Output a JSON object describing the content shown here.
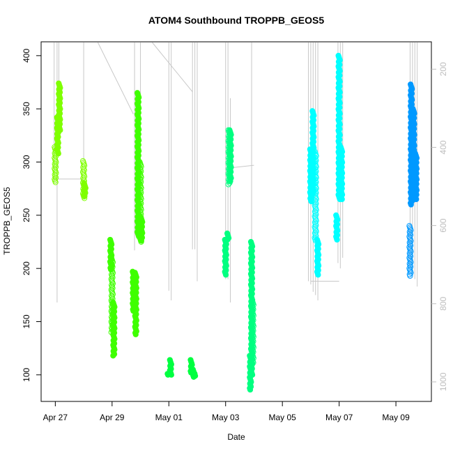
{
  "chart_data": {
    "type": "scatter",
    "title": "ATOM4 Southbound TROPPB_GEOS5",
    "xlabel": "Date",
    "ylabel": "TROPPB_GEOS5",
    "xlim": [
      "2018-04-26T12:00",
      "2018-05-10T06:00"
    ],
    "ylim": [
      75,
      413
    ],
    "x_ticks": [
      {
        "label": "Apr 27",
        "date": "2018-04-27"
      },
      {
        "label": "Apr 29",
        "date": "2018-04-29"
      },
      {
        "label": "May 01",
        "date": "2018-05-01"
      },
      {
        "label": "May 03",
        "date": "2018-05-03"
      },
      {
        "label": "May 05",
        "date": "2018-05-05"
      },
      {
        "label": "May 07",
        "date": "2018-05-07"
      },
      {
        "label": "May 09",
        "date": "2018-05-09"
      }
    ],
    "y_ticks": [
      100,
      150,
      200,
      250,
      300,
      350,
      400
    ],
    "right_axis": {
      "color": "#bdbdbd",
      "lim": [
        1050,
        130
      ],
      "ticks": [
        200,
        400,
        600,
        800,
        1000
      ]
    },
    "grid": false,
    "legend": "none",
    "series": [
      {
        "color": "#7fff00",
        "segments": [
          {
            "x": "2018-04-27T00:00",
            "y0": 281,
            "y1": 314,
            "hollow": true
          },
          {
            "x": "2018-04-27T02:00",
            "y0": 308,
            "y1": 342
          },
          {
            "x": "2018-04-27T03:30",
            "y0": 330,
            "y1": 374
          },
          {
            "x": "2018-04-28T00:00",
            "y0": 266,
            "y1": 301,
            "hollow": true
          },
          {
            "x": "2018-04-28T01:00",
            "y0": 268,
            "y1": 280
          }
        ]
      },
      {
        "color": "#3fff00",
        "segments": [
          {
            "x": "2018-04-28T23:00",
            "y0": 199,
            "y1": 227
          },
          {
            "x": "2018-04-29T00:00",
            "y0": 140,
            "y1": 210,
            "hollow": true
          },
          {
            "x": "2018-04-29T01:30",
            "y0": 118,
            "y1": 168
          },
          {
            "x": "2018-04-29T18:00",
            "y0": 160,
            "y1": 197
          },
          {
            "x": "2018-04-29T20:00",
            "y0": 138,
            "y1": 196
          },
          {
            "x": "2018-04-29T22:00",
            "y0": 230,
            "y1": 365
          },
          {
            "x": "2018-04-30T00:00",
            "y0": 225,
            "y1": 300,
            "hollow": true
          },
          {
            "x": "2018-04-30T01:00",
            "y0": 226,
            "y1": 248
          }
        ]
      },
      {
        "color": "#00ff40",
        "segments": [
          {
            "x": "2018-04-30T23:30",
            "y0": 100,
            "y1": 101
          },
          {
            "x": "2018-05-01T01:30",
            "y0": 100,
            "y1": 114
          },
          {
            "x": "2018-05-01T19:00",
            "y0": 102,
            "y1": 114
          },
          {
            "x": "2018-05-01T21:00",
            "y0": 98,
            "y1": 105
          },
          {
            "x": "2018-05-01T22:30",
            "y0": 99,
            "y1": 101
          }
        ]
      },
      {
        "color": "#00ff80",
        "segments": [
          {
            "x": "2018-05-03T00:00",
            "y0": 194,
            "y1": 227
          },
          {
            "x": "2018-05-03T02:00",
            "y0": 227,
            "y1": 233
          },
          {
            "x": "2018-05-03T03:00",
            "y0": 279,
            "y1": 330,
            "hollow": true
          },
          {
            "x": "2018-05-03T04:00",
            "y0": 282,
            "y1": 330
          },
          {
            "x": "2018-05-03T21:00",
            "y0": 86,
            "y1": 118
          },
          {
            "x": "2018-05-03T22:00",
            "y0": 100,
            "y1": 225
          },
          {
            "x": "2018-05-03T23:00",
            "y0": 110,
            "y1": 170,
            "hollow": true
          }
        ]
      },
      {
        "color": "#00ffff",
        "segments": [
          {
            "x": "2018-05-06T00:00",
            "y0": 263,
            "y1": 312
          },
          {
            "x": "2018-05-06T02:00",
            "y0": 270,
            "y1": 348
          },
          {
            "x": "2018-05-06T04:00",
            "y0": 226,
            "y1": 310,
            "hollow": true
          },
          {
            "x": "2018-05-06T06:00",
            "y0": 194,
            "y1": 227
          },
          {
            "x": "2018-05-06T22:00",
            "y0": 227,
            "y1": 250
          },
          {
            "x": "2018-05-07T00:00",
            "y0": 265,
            "y1": 400
          },
          {
            "x": "2018-05-07T02:00",
            "y0": 265,
            "y1": 314
          }
        ]
      },
      {
        "color": "#0099ff",
        "segments": [
          {
            "x": "2018-05-09T12:00",
            "y0": 193,
            "y1": 240,
            "hollow": true
          },
          {
            "x": "2018-05-09T13:00",
            "y0": 260,
            "y1": 373
          },
          {
            "x": "2018-05-09T15:00",
            "y0": 265,
            "y1": 350
          },
          {
            "x": "2018-05-09T17:00",
            "y0": 265,
            "y1": 308
          }
        ]
      }
    ],
    "trajectory_lines": {
      "color": "#c8c8c8",
      "spikes": [
        {
          "x": "2018-04-26T23:00",
          "y0": 281,
          "y1": 413
        },
        {
          "x": "2018-04-27T01:30",
          "y0": 168,
          "y1": 413
        },
        {
          "x": "2018-04-27T03:00",
          "y0": 360,
          "y1": 413
        },
        {
          "x": "2018-04-28T00:00",
          "y0": 301,
          "y1": 413
        },
        {
          "x": "2018-04-29T00:00",
          "y0": 204,
          "y1": 227
        },
        {
          "x": "2018-04-29T19:00",
          "y0": 217,
          "y1": 413
        },
        {
          "x": "2018-04-30T00:00",
          "y0": 246,
          "y1": 413
        },
        {
          "x": "2018-05-01T00:00",
          "y0": 179,
          "y1": 413
        },
        {
          "x": "2018-05-01T02:00",
          "y0": 170,
          "y1": 413
        },
        {
          "x": "2018-05-01T20:00",
          "y0": 218,
          "y1": 413
        },
        {
          "x": "2018-05-01T22:00",
          "y0": 218,
          "y1": 413
        },
        {
          "x": "2018-05-02T00:00",
          "y0": 188,
          "y1": 413
        },
        {
          "x": "2018-05-03T00:00",
          "y0": 190,
          "y1": 413
        },
        {
          "x": "2018-05-03T02:00",
          "y0": 190,
          "y1": 413
        },
        {
          "x": "2018-05-03T04:00",
          "y0": 168,
          "y1": 360
        },
        {
          "x": "2018-05-03T22:00",
          "y0": 200,
          "y1": 413
        },
        {
          "x": "2018-05-05T22:00",
          "y0": 188,
          "y1": 413
        },
        {
          "x": "2018-05-06T00:00",
          "y0": 185,
          "y1": 413
        },
        {
          "x": "2018-05-06T02:00",
          "y0": 178,
          "y1": 413
        },
        {
          "x": "2018-05-06T04:00",
          "y0": 175,
          "y1": 413
        },
        {
          "x": "2018-05-06T06:00",
          "y0": 170,
          "y1": 413
        },
        {
          "x": "2018-05-06T23:00",
          "y0": 205,
          "y1": 413
        },
        {
          "x": "2018-05-07T01:00",
          "y0": 200,
          "y1": 413
        },
        {
          "x": "2018-05-07T03:00",
          "y0": 210,
          "y1": 413
        },
        {
          "x": "2018-05-09T12:00",
          "y0": 200,
          "y1": 413
        },
        {
          "x": "2018-05-09T14:00",
          "y0": 195,
          "y1": 413
        },
        {
          "x": "2018-05-09T16:00",
          "y0": 190,
          "y1": 413
        },
        {
          "x": "2018-05-09T18:00",
          "y0": 183,
          "y1": 413
        }
      ],
      "connectors": [
        {
          "x0": "2018-04-27T00:00",
          "y0": 284,
          "x1": "2018-04-28T00:00",
          "y1": 284
        },
        {
          "x0": "2018-04-28T12:00",
          "y0": 413,
          "x1": "2018-04-29T18:00",
          "y1": 345
        },
        {
          "x0": "2018-04-30T10:00",
          "y0": 413,
          "x1": "2018-05-01T20:00",
          "y1": 366
        },
        {
          "x0": "2018-05-03T00:00",
          "y0": 294,
          "x1": "2018-05-04T00:00",
          "y1": 297
        },
        {
          "x0": "2018-05-06T00:00",
          "y0": 188,
          "x1": "2018-05-07T00:00",
          "y1": 188
        }
      ]
    }
  }
}
